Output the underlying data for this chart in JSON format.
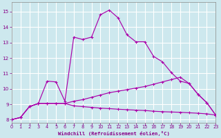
{
  "xlabel": "Windchill (Refroidissement éolien,°C)",
  "background_color": "#cde8ee",
  "grid_color": "#b8d8e0",
  "line_color": "#aa00aa",
  "xlim": [
    0,
    23
  ],
  "ylim": [
    7.8,
    15.6
  ],
  "yticks": [
    8,
    9,
    10,
    11,
    12,
    13,
    14,
    15
  ],
  "xticks": [
    0,
    1,
    2,
    3,
    4,
    5,
    6,
    7,
    8,
    9,
    10,
    11,
    12,
    13,
    14,
    15,
    16,
    17,
    18,
    19,
    20,
    21,
    22,
    23
  ],
  "line1_x": [
    0,
    1,
    2,
    3,
    4,
    5,
    6,
    7,
    8,
    9,
    10,
    11,
    12,
    13,
    14,
    15,
    16,
    17,
    18,
    19,
    20,
    21,
    22,
    23
  ],
  "line1_y": [
    8.0,
    8.15,
    8.85,
    9.05,
    10.5,
    10.45,
    9.2,
    13.35,
    13.2,
    13.35,
    14.8,
    15.1,
    14.6,
    13.5,
    13.05,
    13.05,
    12.1,
    11.75,
    11.05,
    10.5,
    10.35,
    9.65,
    9.1,
    8.3
  ],
  "line2_x": [
    0,
    1,
    2,
    3,
    4,
    5,
    6,
    7,
    8,
    9,
    10,
    11,
    12,
    13,
    14,
    15,
    16,
    17,
    18,
    19,
    20,
    21,
    22,
    23
  ],
  "line2_y": [
    8.0,
    8.15,
    8.85,
    9.05,
    9.05,
    9.05,
    9.05,
    9.2,
    9.3,
    9.45,
    9.6,
    9.75,
    9.85,
    9.95,
    10.05,
    10.15,
    10.3,
    10.45,
    10.6,
    10.75,
    10.35,
    9.65,
    9.1,
    8.3
  ],
  "line3_x": [
    0,
    1,
    2,
    3,
    4,
    5,
    6,
    7,
    8,
    9,
    10,
    11,
    12,
    13,
    14,
    15,
    16,
    17,
    18,
    19,
    20,
    21,
    22,
    23
  ],
  "line3_y": [
    8.0,
    8.15,
    8.85,
    9.05,
    9.05,
    9.05,
    9.05,
    8.9,
    8.85,
    8.8,
    8.75,
    8.72,
    8.68,
    8.65,
    8.62,
    8.6,
    8.55,
    8.52,
    8.5,
    8.48,
    8.45,
    8.42,
    8.38,
    8.3
  ]
}
